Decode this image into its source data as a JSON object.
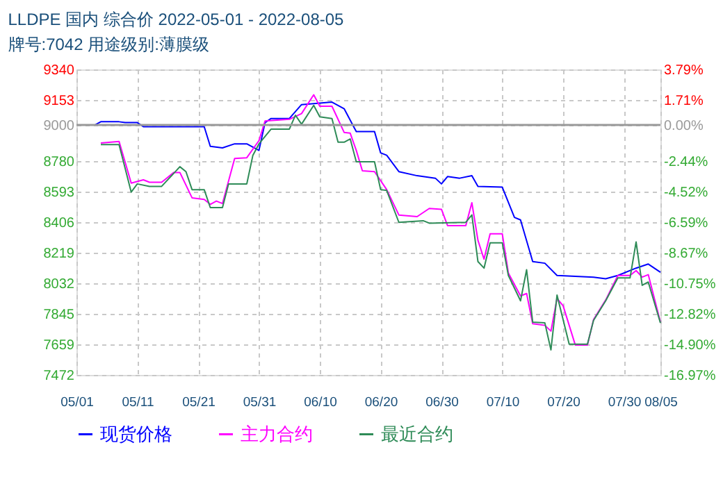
{
  "chart_data": {
    "type": "line",
    "title": "LLDPE 国内 综合价 2022-05-01 - 2022-08-05",
    "subtitle": "牌号:7042 用途级别:薄膜级",
    "xlim": [
      "2022-05-01",
      "2022-08-05"
    ],
    "xticks": [
      {
        "value": "2022-05-01",
        "label": "05/01"
      },
      {
        "value": "2022-05-11",
        "label": "05/11"
      },
      {
        "value": "2022-05-21",
        "label": "05/21"
      },
      {
        "value": "2022-05-31",
        "label": "05/31"
      },
      {
        "value": "2022-06-10",
        "label": "06/10"
      },
      {
        "value": "2022-06-20",
        "label": "06/20"
      },
      {
        "value": "2022-06-30",
        "label": "06/30"
      },
      {
        "value": "2022-07-10",
        "label": "07/10"
      },
      {
        "value": "2022-07-20",
        "label": "07/20"
      },
      {
        "value": "2022-07-30",
        "label": "07/30"
      },
      {
        "value": "2022-08-05",
        "label": "08/05"
      }
    ],
    "ylim": [
      7472,
      9340
    ],
    "yticks": [
      7472,
      7659,
      7845,
      8032,
      8219,
      8406,
      8593,
      8780,
      9000,
      9153,
      9340
    ],
    "y2lim": [
      -16.97,
      3.79
    ],
    "y2ticks": [
      {
        "value": -16.97,
        "label": "-16.97%"
      },
      {
        "value": -14.9,
        "label": "-14.90%"
      },
      {
        "value": -12.82,
        "label": "-12.82%"
      },
      {
        "value": -10.75,
        "label": "-10.75%"
      },
      {
        "value": -8.67,
        "label": "-8.67%"
      },
      {
        "value": -6.59,
        "label": "-6.59%"
      },
      {
        "value": -4.52,
        "label": "-4.52%"
      },
      {
        "value": -2.44,
        "label": "-2.44%"
      },
      {
        "value": 0,
        "label": "0.00%"
      },
      {
        "value": 1.71,
        "label": "1.71%"
      },
      {
        "value": 3.79,
        "label": "3.79%"
      }
    ],
    "ref_lines": [
      {
        "axis": "y",
        "value": 9000,
        "color": "#999999"
      }
    ],
    "grid": true,
    "legend": "bottom",
    "series": [
      {
        "name": "现货价格",
        "color": "#0000ff",
        "x": [
          "2022-05-01",
          "2022-05-04",
          "2022-05-05",
          "2022-05-08",
          "2022-05-09",
          "2022-05-11",
          "2022-05-12",
          "2022-05-22",
          "2022-05-23",
          "2022-05-25",
          "2022-05-27",
          "2022-05-29",
          "2022-05-31",
          "2022-06-01",
          "2022-06-02",
          "2022-06-05",
          "2022-06-07",
          "2022-06-12",
          "2022-06-14",
          "2022-06-16",
          "2022-06-19",
          "2022-06-20",
          "2022-06-21",
          "2022-06-23",
          "2022-06-26",
          "2022-06-29",
          "2022-06-30",
          "2022-07-01",
          "2022-07-03",
          "2022-07-05",
          "2022-07-06",
          "2022-07-10",
          "2022-07-12",
          "2022-07-13",
          "2022-07-15",
          "2022-07-17",
          "2022-07-19",
          "2022-07-25",
          "2022-07-27",
          "2022-07-29",
          "2022-08-01",
          "2022-08-03",
          "2022-08-05"
        ],
        "values": [
          9000,
          9000,
          9020,
          9020,
          9015,
          9015,
          8990,
          8990,
          8870,
          8860,
          8885,
          8885,
          8845,
          9015,
          9040,
          9040,
          9125,
          9140,
          9100,
          8960,
          8960,
          8830,
          8815,
          8715,
          8690,
          8675,
          8640,
          8685,
          8675,
          8690,
          8625,
          8620,
          8435,
          8420,
          8165,
          8155,
          8080,
          8070,
          8060,
          8080,
          8125,
          8150,
          8100
        ]
      },
      {
        "name": "主力合约",
        "color": "#ff00ff",
        "x": [
          "2022-05-05",
          "2022-05-08",
          "2022-05-10",
          "2022-05-12",
          "2022-05-13",
          "2022-05-15",
          "2022-05-17",
          "2022-05-18",
          "2022-05-20",
          "2022-05-22",
          "2022-05-23",
          "2022-05-24",
          "2022-05-25",
          "2022-05-27",
          "2022-05-29",
          "2022-05-31",
          "2022-06-01",
          "2022-06-05",
          "2022-06-07",
          "2022-06-09",
          "2022-06-10",
          "2022-06-12",
          "2022-06-14",
          "2022-06-15",
          "2022-06-16",
          "2022-06-17",
          "2022-06-19",
          "2022-06-20",
          "2022-06-21",
          "2022-06-23",
          "2022-06-26",
          "2022-06-28",
          "2022-06-30",
          "2022-07-01",
          "2022-07-04",
          "2022-07-05",
          "2022-07-06",
          "2022-07-07",
          "2022-07-08",
          "2022-07-10",
          "2022-07-11",
          "2022-07-13",
          "2022-07-14",
          "2022-07-15",
          "2022-07-17",
          "2022-07-18",
          "2022-07-19",
          "2022-07-20",
          "2022-07-22",
          "2022-07-24",
          "2022-07-25",
          "2022-07-27",
          "2022-07-29",
          "2022-07-31",
          "2022-08-01",
          "2022-08-02",
          "2022-08-03",
          "2022-08-05"
        ],
        "values": [
          8890,
          8900,
          8645,
          8665,
          8650,
          8650,
          8710,
          8710,
          8555,
          8545,
          8515,
          8535,
          8520,
          8795,
          8800,
          8905,
          9025,
          9035,
          9070,
          9185,
          9115,
          9115,
          8955,
          8950,
          8845,
          8720,
          8715,
          8660,
          8605,
          8450,
          8440,
          8490,
          8485,
          8385,
          8385,
          8525,
          8295,
          8180,
          8335,
          8335,
          8095,
          7955,
          7970,
          7785,
          7775,
          7740,
          7940,
          7895,
          7655,
          7655,
          7810,
          7930,
          8080,
          8080,
          8110,
          8070,
          8085,
          7795
        ]
      },
      {
        "name": "最近合约",
        "color": "#2e8b57",
        "x": [
          "2022-05-05",
          "2022-05-08",
          "2022-05-10",
          "2022-05-11",
          "2022-05-13",
          "2022-05-15",
          "2022-05-18",
          "2022-05-19",
          "2022-05-20",
          "2022-05-22",
          "2022-05-23",
          "2022-05-25",
          "2022-05-26",
          "2022-05-29",
          "2022-05-30",
          "2022-05-31",
          "2022-06-02",
          "2022-06-05",
          "2022-06-06",
          "2022-06-07",
          "2022-06-09",
          "2022-06-10",
          "2022-06-12",
          "2022-06-13",
          "2022-06-14",
          "2022-06-15",
          "2022-06-16",
          "2022-06-19",
          "2022-06-20",
          "2022-06-21",
          "2022-06-23",
          "2022-06-27",
          "2022-06-28",
          "2022-07-04",
          "2022-07-05",
          "2022-07-06",
          "2022-07-07",
          "2022-07-08",
          "2022-07-10",
          "2022-07-11",
          "2022-07-13",
          "2022-07-14",
          "2022-07-15",
          "2022-07-17",
          "2022-07-18",
          "2022-07-19",
          "2022-07-21",
          "2022-07-24",
          "2022-07-25",
          "2022-07-27",
          "2022-07-29",
          "2022-07-31",
          "2022-08-01",
          "2022-08-02",
          "2022-08-03",
          "2022-08-05"
        ],
        "values": [
          8880,
          8880,
          8590,
          8640,
          8625,
          8625,
          8745,
          8715,
          8605,
          8605,
          8495,
          8495,
          8640,
          8640,
          8815,
          8885,
          8975,
          8975,
          9060,
          9005,
          9120,
          9050,
          9040,
          8895,
          8895,
          8915,
          8775,
          8775,
          8605,
          8600,
          8405,
          8415,
          8400,
          8405,
          8450,
          8165,
          8125,
          8280,
          8280,
          8080,
          7925,
          8115,
          7795,
          7790,
          7625,
          7960,
          7660,
          7660,
          7805,
          7925,
          8065,
          8065,
          8285,
          8020,
          8040,
          7790
        ]
      }
    ]
  }
}
